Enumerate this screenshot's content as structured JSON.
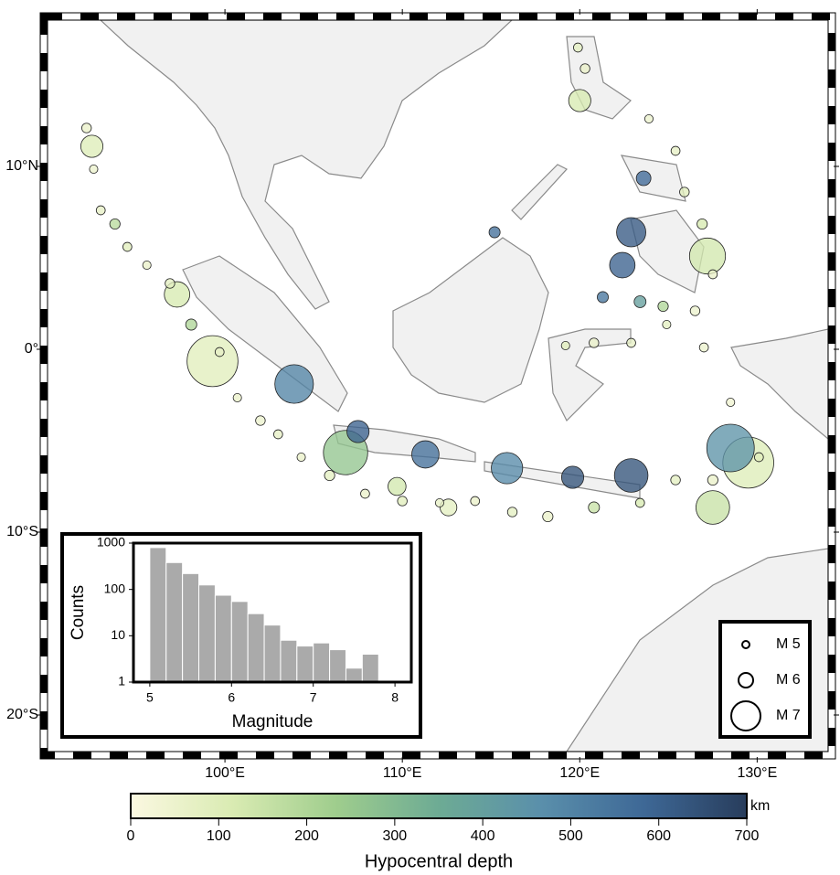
{
  "chart_data": [
    {
      "type": "map",
      "xlim": [
        90,
        134
      ],
      "ylim": [
        -22,
        18
      ],
      "xticks": [
        {
          "value": 100,
          "label": "100°E"
        },
        {
          "value": 110,
          "label": "110°E"
        },
        {
          "value": 120,
          "label": "120°E"
        },
        {
          "value": 130,
          "label": "130°E"
        }
      ],
      "yticks": [
        {
          "value": -20,
          "label": "20°S"
        },
        {
          "value": -10,
          "label": "10°S"
        },
        {
          "value": 0,
          "label": "0°"
        },
        {
          "value": 10,
          "label": "10°N"
        }
      ],
      "events": {
        "lon": [
          122.9,
          122.4,
          103.9,
          99.3,
          106.8,
          129.5,
          128.5,
          115.9,
          111.3,
          107.5,
          122.9,
          119.6,
          92.5,
          97.3,
          115.2,
          127.2,
          120.0,
          123.6,
          127.5,
          109.7,
          112.6,
          92.2,
          92.6,
          93.0,
          93.8,
          94.5,
          95.6,
          96.9,
          98.1,
          99.7,
          100.7,
          102.0,
          103.0,
          104.3,
          105.9,
          107.9,
          110.0,
          112.1,
          114.1,
          116.2,
          118.2,
          120.8,
          123.4,
          125.4,
          127.5,
          130.1,
          128.5,
          119.9,
          120.3,
          123.9,
          125.4,
          125.9,
          126.9,
          127.5,
          126.5,
          124.9,
          122.9,
          120.8,
          119.2,
          127.0,
          124.7,
          121.3,
          123.4
        ],
        "lat": [
          6.4,
          4.6,
          -1.9,
          -0.65,
          -5.65,
          -6.2,
          -5.4,
          -6.5,
          -5.75,
          -4.5,
          -6.9,
          -7.0,
          11.1,
          3.0,
          6.4,
          5.1,
          13.6,
          9.35,
          -8.65,
          -7.5,
          -8.65,
          12.1,
          9.85,
          7.6,
          6.85,
          5.6,
          4.6,
          3.6,
          1.35,
          -0.15,
          -2.65,
          -3.9,
          -4.65,
          -5.9,
          -6.9,
          -7.9,
          -8.3,
          -8.4,
          -8.3,
          -8.9,
          -9.15,
          -8.65,
          -8.4,
          -7.15,
          -7.15,
          -5.9,
          -2.9,
          16.5,
          15.35,
          12.6,
          10.85,
          8.6,
          6.85,
          4.1,
          2.1,
          1.35,
          0.35,
          0.35,
          0.2,
          0.1,
          2.35,
          2.85,
          2.6
        ],
        "depth": [
          620,
          600,
          500,
          90,
          260,
          100,
          450,
          480,
          560,
          600,
          640,
          640,
          100,
          120,
          560,
          130,
          120,
          580,
          150,
          130,
          80,
          60,
          50,
          70,
          180,
          90,
          60,
          80,
          200,
          70,
          60,
          50,
          70,
          60,
          80,
          60,
          90,
          70,
          60,
          80,
          60,
          150,
          120,
          80,
          60,
          90,
          40,
          80,
          60,
          50,
          70,
          90,
          120,
          60,
          50,
          80,
          70,
          60,
          90,
          50,
          200,
          540,
          400
        ],
        "magnitude": [
          7.0,
          6.8,
          7.4,
          7.8,
          7.6,
          7.8,
          7.7,
          7.1,
          6.9,
          6.6,
          7.2,
          6.6,
          6.6,
          6.8,
          5.6,
          7.3,
          6.6,
          6.0,
          7.2,
          6.3,
          6.2,
          5.4,
          5.2,
          5.3,
          5.5,
          5.3,
          5.2,
          5.4,
          5.6,
          5.3,
          5.2,
          5.4,
          5.3,
          5.2,
          5.5,
          5.3,
          5.4,
          5.2,
          5.3,
          5.4,
          5.5,
          5.6,
          5.3,
          5.4,
          5.5,
          5.3,
          5.2,
          5.3,
          5.4,
          5.2,
          5.3,
          5.4,
          5.5,
          5.3,
          5.4,
          5.2,
          5.3,
          5.4,
          5.2,
          5.3,
          5.5,
          5.6,
          5.7
        ]
      },
      "colorbar": {
        "label": "Hypocentral depth",
        "unit": "km",
        "lim": [
          0,
          700
        ],
        "ticks": [
          0,
          100,
          200,
          300,
          400,
          500,
          600,
          700
        ],
        "colormap": [
          "#fbf8e1",
          "#d9ebb2",
          "#9fcd8d",
          "#6dab94",
          "#5a8fab",
          "#3e6896",
          "#283d5c"
        ]
      },
      "size_legend": [
        {
          "label": "M 5",
          "value": 5
        },
        {
          "label": "M 6",
          "value": 6
        },
        {
          "label": "M 7",
          "value": 7
        }
      ]
    },
    {
      "type": "histogram",
      "xlabel": "Magnitude",
      "ylabel": "Counts",
      "log_y": true,
      "color": "#aaaaaa",
      "bins": [
        5.0,
        5.2,
        5.4,
        5.6,
        5.8,
        6.0,
        6.2,
        6.4,
        6.6,
        6.8,
        7.0,
        7.2,
        7.4,
        7.6,
        7.8
      ],
      "values": [
        800,
        380,
        220,
        125,
        75,
        55,
        30,
        17,
        8,
        6,
        7,
        5,
        2,
        4
      ],
      "xlim": [
        4.8,
        8.2
      ],
      "xticks": [
        5,
        6,
        7,
        8
      ],
      "ylim": [
        1,
        1000
      ],
      "yticks": [
        1,
        10,
        100,
        1000
      ]
    }
  ]
}
